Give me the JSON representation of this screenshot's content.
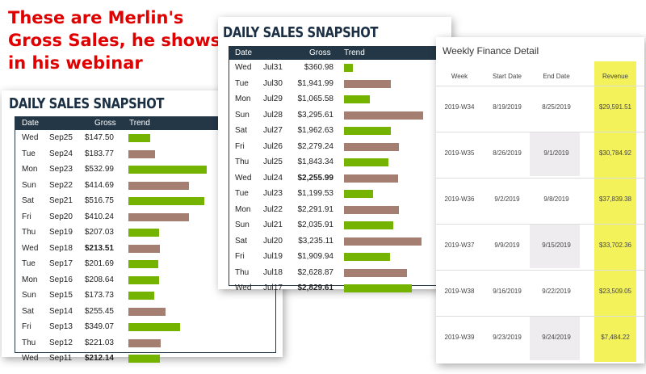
{
  "caption": {
    "line1": "These are Merlin's",
    "line2": "Gross Sales, he shows",
    "line3": "in his webinar"
  },
  "colors": {
    "header": "#243746",
    "green_bar": "#74b300",
    "brown_bar": "#a47e70",
    "caption": "#e00000",
    "revenue_highlight": "#f4f25a"
  },
  "snapshot_left": {
    "title": "DAILY SALES SNAPSHOT",
    "columns": {
      "date": "Date",
      "gross": "Gross",
      "trend": "Trend"
    },
    "max_value": 532.99,
    "rows": [
      {
        "day": "Wed",
        "date": "Sep25",
        "gross": "$147.50",
        "value": 147.5,
        "bar": "green",
        "bold": false
      },
      {
        "day": "Tue",
        "date": "Sep24",
        "gross": "$183.77",
        "value": 183.77,
        "bar": "brown",
        "bold": false
      },
      {
        "day": "Mon",
        "date": "Sep23",
        "gross": "$532.99",
        "value": 532.99,
        "bar": "green",
        "bold": false
      },
      {
        "day": "Sun",
        "date": "Sep22",
        "gross": "$414.69",
        "value": 414.69,
        "bar": "brown",
        "bold": false
      },
      {
        "day": "Sat",
        "date": "Sep21",
        "gross": "$516.75",
        "value": 516.75,
        "bar": "green",
        "bold": false
      },
      {
        "day": "Fri",
        "date": "Sep20",
        "gross": "$410.24",
        "value": 410.24,
        "bar": "brown",
        "bold": false
      },
      {
        "day": "Thu",
        "date": "Sep19",
        "gross": "$207.03",
        "value": 207.03,
        "bar": "green",
        "bold": false
      },
      {
        "day": "Wed",
        "date": "Sep18",
        "gross": "$213.51",
        "value": 213.51,
        "bar": "brown",
        "bold": true
      },
      {
        "day": "Tue",
        "date": "Sep17",
        "gross": "$201.69",
        "value": 201.69,
        "bar": "green",
        "bold": false
      },
      {
        "day": "Mon",
        "date": "Sep16",
        "gross": "$208.64",
        "value": 208.64,
        "bar": "green",
        "bold": false
      },
      {
        "day": "Sun",
        "date": "Sep15",
        "gross": "$173.73",
        "value": 173.73,
        "bar": "green",
        "bold": false
      },
      {
        "day": "Sat",
        "date": "Sep14",
        "gross": "$255.45",
        "value": 255.45,
        "bar": "brown",
        "bold": false
      },
      {
        "day": "Fri",
        "date": "Sep13",
        "gross": "$349.07",
        "value": 349.07,
        "bar": "green",
        "bold": false
      },
      {
        "day": "Thu",
        "date": "Sep12",
        "gross": "$221.03",
        "value": 221.03,
        "bar": "brown",
        "bold": false
      },
      {
        "day": "Wed",
        "date": "Sep11",
        "gross": "$212.14",
        "value": 212.14,
        "bar": "green",
        "bold": true
      }
    ]
  },
  "snapshot_middle": {
    "title": "DAILY SALES SNAPSHOT",
    "columns": {
      "date": "Date",
      "gross": "Gross",
      "trend": "Trend"
    },
    "max_value": 3295.61,
    "rows": [
      {
        "day": "Wed",
        "date": "Jul31",
        "gross": "$360.98",
        "value": 360.98,
        "bar": "green",
        "bold": false
      },
      {
        "day": "Tue",
        "date": "Jul30",
        "gross": "$1,941.99",
        "value": 1941.99,
        "bar": "brown",
        "bold": false
      },
      {
        "day": "Mon",
        "date": "Jul29",
        "gross": "$1,065.58",
        "value": 1065.58,
        "bar": "green",
        "bold": false
      },
      {
        "day": "Sun",
        "date": "Jul28",
        "gross": "$3,295.61",
        "value": 3295.61,
        "bar": "brown",
        "bold": false
      },
      {
        "day": "Sat",
        "date": "Jul27",
        "gross": "$1,962.63",
        "value": 1962.63,
        "bar": "green",
        "bold": false
      },
      {
        "day": "Fri",
        "date": "Jul26",
        "gross": "$2,279.24",
        "value": 2279.24,
        "bar": "brown",
        "bold": false
      },
      {
        "day": "Thu",
        "date": "Jul25",
        "gross": "$1,843.34",
        "value": 1843.34,
        "bar": "green",
        "bold": false
      },
      {
        "day": "Wed",
        "date": "Jul24",
        "gross": "$2,255.99",
        "value": 2255.99,
        "bar": "brown",
        "bold": true
      },
      {
        "day": "Tue",
        "date": "Jul23",
        "gross": "$1,199.53",
        "value": 1199.53,
        "bar": "green",
        "bold": false
      },
      {
        "day": "Mon",
        "date": "Jul22",
        "gross": "$2,291.91",
        "value": 2291.91,
        "bar": "brown",
        "bold": false
      },
      {
        "day": "Sun",
        "date": "Jul21",
        "gross": "$2,035.91",
        "value": 2035.91,
        "bar": "green",
        "bold": false
      },
      {
        "day": "Sat",
        "date": "Jul20",
        "gross": "$3,235.11",
        "value": 3235.11,
        "bar": "brown",
        "bold": false
      },
      {
        "day": "Fri",
        "date": "Jul19",
        "gross": "$1,909.94",
        "value": 1909.94,
        "bar": "green",
        "bold": false
      },
      {
        "day": "Thu",
        "date": "Jul18",
        "gross": "$2,628.87",
        "value": 2628.87,
        "bar": "brown",
        "bold": false
      },
      {
        "day": "Wed",
        "date": "Jul17",
        "gross": "$2,829.61",
        "value": 2829.61,
        "bar": "green",
        "bold": true
      }
    ]
  },
  "weekly": {
    "title": "Weekly Finance Detail",
    "headers": {
      "week": "Week",
      "start": "Start Date",
      "end": "End Date",
      "revenue": "Revenue"
    },
    "rows": [
      {
        "week": "2019-W34",
        "start": "8/19/2019",
        "end": "8/25/2019",
        "revenue": "$29,591.51"
      },
      {
        "week": "2019-W35",
        "start": "8/26/2019",
        "end": "9/1/2019",
        "revenue": "$30,784.92"
      },
      {
        "week": "2019-W36",
        "start": "9/2/2019",
        "end": "9/8/2019",
        "revenue": "$37,839.38"
      },
      {
        "week": "2019-W37",
        "start": "9/9/2019",
        "end": "9/15/2019",
        "revenue": "$33,702.36"
      },
      {
        "week": "2019-W38",
        "start": "9/16/2019",
        "end": "9/22/2019",
        "revenue": "$23,509.05"
      },
      {
        "week": "2019-W39",
        "start": "9/23/2019",
        "end": "9/24/2019",
        "revenue": "$7,484.22"
      }
    ]
  }
}
